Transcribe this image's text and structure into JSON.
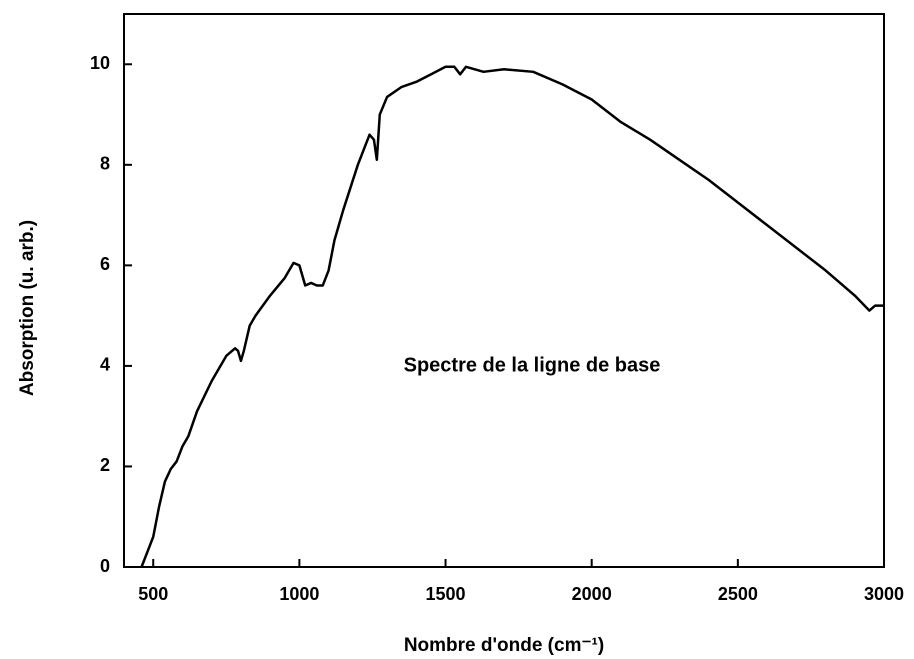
{
  "chart_data": {
    "type": "line",
    "xlabel": "Nombre d'onde (cm⁻¹)",
    "ylabel": "Absorption (u. arb.)",
    "annotation": "Spectre de la ligne de base",
    "xlim": [
      400,
      3000
    ],
    "ylim": [
      0,
      11
    ],
    "xticks": [
      500,
      1000,
      1500,
      2000,
      2500,
      3000
    ],
    "yticks": [
      0,
      2,
      4,
      6,
      8,
      10
    ],
    "x": [
      460,
      480,
      500,
      520,
      540,
      560,
      580,
      600,
      620,
      650,
      700,
      750,
      780,
      790,
      800,
      810,
      830,
      850,
      900,
      950,
      980,
      1000,
      1020,
      1040,
      1060,
      1080,
      1100,
      1120,
      1150,
      1200,
      1240,
      1255,
      1265,
      1275,
      1300,
      1350,
      1400,
      1450,
      1500,
      1530,
      1550,
      1570,
      1600,
      1630,
      1700,
      1800,
      1900,
      2000,
      2100,
      2200,
      2300,
      2400,
      2500,
      2600,
      2700,
      2800,
      2900,
      2950,
      2970,
      3000
    ],
    "series": [
      {
        "color": "#000000",
        "values": [
          0,
          0.3,
          0.6,
          1.2,
          1.7,
          1.95,
          2.1,
          2.4,
          2.6,
          3.1,
          3.7,
          4.2,
          4.35,
          4.3,
          4.1,
          4.3,
          4.8,
          5.0,
          5.4,
          5.75,
          6.05,
          6.0,
          5.6,
          5.65,
          5.6,
          5.6,
          5.9,
          6.5,
          7.1,
          8.0,
          8.6,
          8.5,
          8.1,
          9.0,
          9.35,
          9.55,
          9.65,
          9.8,
          9.95,
          9.95,
          9.8,
          9.95,
          9.9,
          9.85,
          9.9,
          9.85,
          9.6,
          9.3,
          8.85,
          8.5,
          8.1,
          7.7,
          7.25,
          6.8,
          6.35,
          5.9,
          5.4,
          5.1,
          5.2,
          5.2
        ]
      }
    ]
  }
}
